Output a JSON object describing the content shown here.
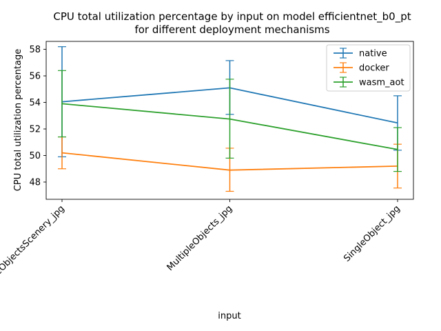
{
  "chart_data": {
    "type": "line",
    "title_line1": "CPU total utilization percentage by input on model efficientnet_b0_pt",
    "title_line2": "for different deployment mechanisms",
    "xlabel": "input",
    "ylabel": "CPU total utilization percentage",
    "categories": [
      "MultipleObjectsScenery_jpg",
      "MultipleObjects_jpg",
      "SingleObject_jpg"
    ],
    "ylim": [
      46.7,
      58.6
    ],
    "yticks": [
      48,
      50,
      52,
      54,
      56,
      58
    ],
    "legend_position": "top-right",
    "grid": false,
    "series": [
      {
        "name": "native",
        "color": "#1f77b4",
        "values": [
          54.05,
          55.1,
          52.45
        ],
        "lower": [
          49.9,
          53.1,
          50.4
        ],
        "upper": [
          58.2,
          57.15,
          54.5
        ]
      },
      {
        "name": "docker",
        "color": "#ff7f0e",
        "values": [
          50.2,
          48.9,
          49.2
        ],
        "lower": [
          49.0,
          47.3,
          47.55
        ],
        "upper": [
          51.4,
          50.55,
          50.85
        ]
      },
      {
        "name": "wasm_aot",
        "color": "#2ca02c",
        "values": [
          53.9,
          52.75,
          50.45
        ],
        "lower": [
          51.4,
          49.8,
          48.8
        ],
        "upper": [
          56.4,
          55.75,
          52.1
        ]
      }
    ]
  }
}
